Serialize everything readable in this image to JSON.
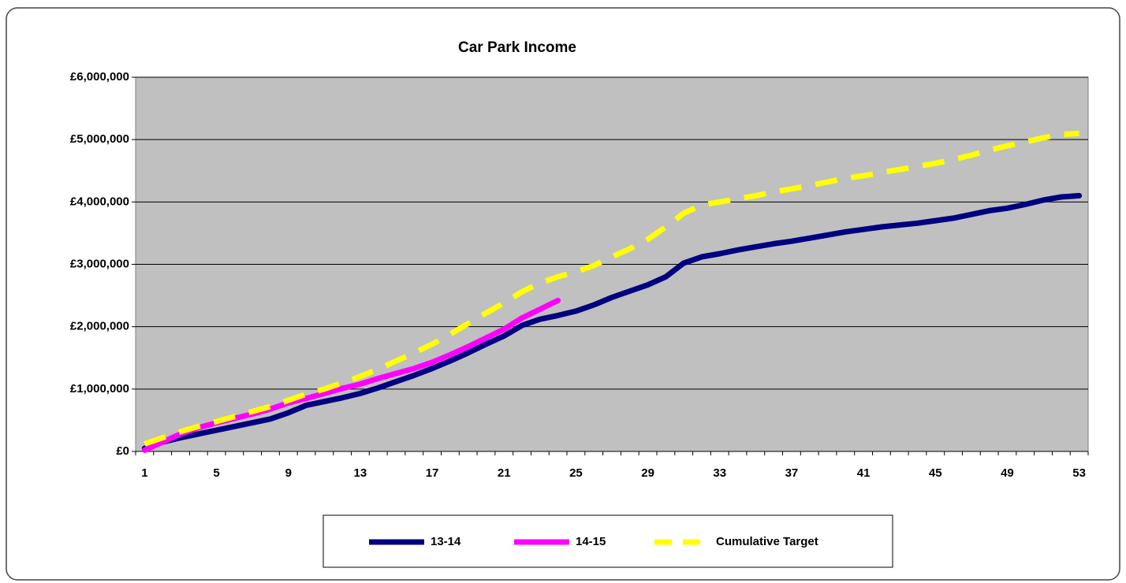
{
  "chart_data": {
    "type": "line",
    "title": "Car Park Income",
    "categories": [
      "1",
      null,
      null,
      null,
      "5",
      null,
      null,
      null,
      "9",
      null,
      null,
      null,
      "13",
      null,
      null,
      null,
      "17",
      null,
      null,
      null,
      "21",
      null,
      null,
      null,
      "25",
      null,
      null,
      null,
      "29",
      null,
      null,
      null,
      "33",
      null,
      null,
      null,
      "37",
      null,
      null,
      null,
      "41",
      null,
      null,
      null,
      "45",
      null,
      null,
      null,
      "49",
      null,
      null,
      null,
      "53"
    ],
    "series": [
      {
        "name": "13-14",
        "color": "#000080",
        "style": "solid",
        "values": [
          50000,
          150000,
          220000,
          280000,
          340000,
          400000,
          460000,
          520000,
          620000,
          740000,
          800000,
          860000,
          930000,
          1020000,
          1120000,
          1220000,
          1330000,
          1450000,
          1580000,
          1720000,
          1850000,
          2020000,
          2120000,
          2180000,
          2250000,
          2350000,
          2470000,
          2570000,
          2670000,
          2800000,
          3020000,
          3120000,
          3170000,
          3230000,
          3280000,
          3330000,
          3370000,
          3420000,
          3470000,
          3520000,
          3560000,
          3600000,
          3630000,
          3660000,
          3700000,
          3740000,
          3800000,
          3860000,
          3900000,
          3960000,
          4030000,
          4080000,
          4100000
        ]
      },
      {
        "name": "14-15",
        "color": "#ff00ff",
        "style": "solid",
        "values": [
          20000,
          150000,
          280000,
          380000,
          460000,
          530000,
          600000,
          680000,
          780000,
          850000,
          930000,
          1010000,
          1080000,
          1170000,
          1250000,
          1330000,
          1430000,
          1550000,
          1680000,
          1820000,
          1960000,
          2140000,
          2280000,
          2420000,
          null,
          null,
          null,
          null,
          null,
          null,
          null,
          null,
          null,
          null,
          null,
          null,
          null,
          null,
          null,
          null,
          null,
          null,
          null,
          null,
          null,
          null,
          null,
          null,
          null,
          null,
          null,
          null,
          null
        ]
      },
      {
        "name": "Cumulative Target",
        "color": "#ffff00",
        "style": "dashed",
        "values": [
          120000,
          220000,
          320000,
          400000,
          480000,
          560000,
          640000,
          720000,
          820000,
          920000,
          1000000,
          1100000,
          1200000,
          1320000,
          1450000,
          1580000,
          1720000,
          1880000,
          2050000,
          2220000,
          2380000,
          2560000,
          2700000,
          2800000,
          2880000,
          2980000,
          3120000,
          3250000,
          3400000,
          3600000,
          3820000,
          3950000,
          4000000,
          4050000,
          4100000,
          4160000,
          4210000,
          4260000,
          4320000,
          4380000,
          4420000,
          4470000,
          4520000,
          4570000,
          4620000,
          4680000,
          4750000,
          4830000,
          4900000,
          4960000,
          5030000,
          5080000,
          5100000
        ]
      }
    ],
    "ylim": [
      0,
      6000000
    ],
    "yticks": [
      {
        "value": 0,
        "label": "£0"
      },
      {
        "value": 1000000,
        "label": "£1,000,000"
      },
      {
        "value": 2000000,
        "label": "£2,000,000"
      },
      {
        "value": 3000000,
        "label": "£3,000,000"
      },
      {
        "value": 4000000,
        "label": "£4,000,000"
      },
      {
        "value": 5000000,
        "label": "£5,000,000"
      },
      {
        "value": 6000000,
        "label": "£6,000,000"
      }
    ],
    "grid": true,
    "legend": "bottom"
  }
}
